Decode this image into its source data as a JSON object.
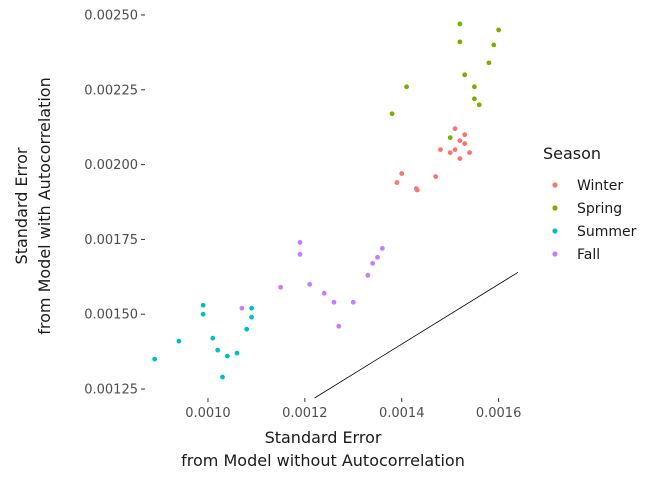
{
  "chart_data": {
    "type": "scatter",
    "xlabel": [
      "Standard Error",
      "from Model without Autocorrelation"
    ],
    "ylabel": [
      "Standard Error",
      "from Model with Autocorrelation"
    ],
    "xlim": [
      0.00087,
      0.00164
    ],
    "ylim": [
      0.00122,
      0.00253
    ],
    "x_ticks": [
      {
        "value": 0.001,
        "label": "0.0010"
      },
      {
        "value": 0.0012,
        "label": "0.0012"
      },
      {
        "value": 0.0014,
        "label": "0.0014"
      },
      {
        "value": 0.0016,
        "label": "0.0016"
      }
    ],
    "y_ticks": [
      {
        "value": 0.00125,
        "label": "0.00125"
      },
      {
        "value": 0.0015,
        "label": "0.00150"
      },
      {
        "value": 0.00175,
        "label": "0.00175"
      },
      {
        "value": 0.002,
        "label": "0.00200"
      },
      {
        "value": 0.00225,
        "label": "0.00225"
      },
      {
        "value": 0.0025,
        "label": "0.00250"
      }
    ],
    "grid": false,
    "legend": {
      "title": "Season",
      "position": "right"
    },
    "reference_line": {
      "x": [
        0.00122,
        0.00164
      ],
      "y": [
        0.00122,
        0.00164
      ]
    },
    "series": [
      {
        "name": "Winter",
        "color": "#F8766D",
        "points": [
          [
            0.00139,
            0.00194
          ],
          [
            0.0014,
            0.00197
          ],
          [
            0.00143,
            0.00192
          ],
          [
            0.001432,
            0.001915
          ],
          [
            0.00147,
            0.00196
          ],
          [
            0.00148,
            0.00205
          ],
          [
            0.0015,
            0.00204
          ],
          [
            0.00151,
            0.00205
          ],
          [
            0.00151,
            0.00212
          ],
          [
            0.00152,
            0.00202
          ],
          [
            0.00152,
            0.00208
          ],
          [
            0.00153,
            0.00207
          ],
          [
            0.00153,
            0.0021
          ],
          [
            0.00154,
            0.00204
          ]
        ]
      },
      {
        "name": "Spring",
        "color": "#7CAE00",
        "points": [
          [
            0.00138,
            0.00217
          ],
          [
            0.00141,
            0.00226
          ],
          [
            0.0015,
            0.00209
          ],
          [
            0.00152,
            0.00241
          ],
          [
            0.00152,
            0.00247
          ],
          [
            0.00153,
            0.0023
          ],
          [
            0.00155,
            0.00226
          ],
          [
            0.00155,
            0.00222
          ],
          [
            0.00156,
            0.0022
          ],
          [
            0.00158,
            0.00234
          ],
          [
            0.00159,
            0.0024
          ],
          [
            0.0016,
            0.00245
          ]
        ]
      },
      {
        "name": "Summer",
        "color": "#00BFC4",
        "points": [
          [
            0.00089,
            0.00135
          ],
          [
            0.00094,
            0.00141
          ],
          [
            0.00099,
            0.00153
          ],
          [
            0.00099,
            0.0015
          ],
          [
            0.00101,
            0.00142
          ],
          [
            0.00102,
            0.00138
          ],
          [
            0.00103,
            0.00129
          ],
          [
            0.00104,
            0.00136
          ],
          [
            0.00106,
            0.00137
          ],
          [
            0.00108,
            0.00145
          ],
          [
            0.00109,
            0.00152
          ],
          [
            0.00109,
            0.00149
          ]
        ]
      },
      {
        "name": "Fall",
        "color": "#C77CFF",
        "points": [
          [
            0.00107,
            0.00152
          ],
          [
            0.00115,
            0.00159
          ],
          [
            0.00119,
            0.00174
          ],
          [
            0.00119,
            0.0017
          ],
          [
            0.00121,
            0.0016
          ],
          [
            0.00124,
            0.00157
          ],
          [
            0.00126,
            0.00154
          ],
          [
            0.00127,
            0.00146
          ],
          [
            0.0013,
            0.00154
          ],
          [
            0.00133,
            0.00163
          ],
          [
            0.00134,
            0.00167
          ],
          [
            0.00135,
            0.00169
          ],
          [
            0.00136,
            0.00172
          ]
        ]
      }
    ]
  }
}
